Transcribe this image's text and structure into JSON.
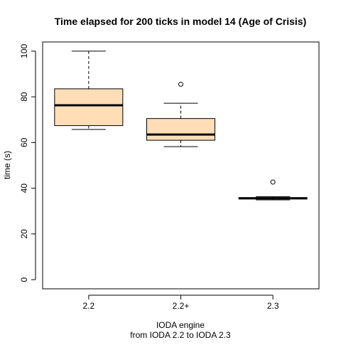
{
  "chart_data": {
    "type": "boxplot",
    "title": "Time elapsed for 200 ticks in model 14 (Age of Crisis)",
    "xlabel": "IODA engine",
    "xlabel_sub": "from IODA 2.2 to IODA 2.3",
    "ylabel": "time (s)",
    "categories": [
      "2.2",
      "2.2+",
      "2.3"
    ],
    "ylim": [
      -4,
      104
    ],
    "yticks": [
      0,
      20,
      40,
      60,
      80,
      100
    ],
    "grid": false,
    "legend": "none",
    "box_fill": "#FFDEB7",
    "boxes": [
      {
        "label": "2.2",
        "min": 65.7,
        "q1": 67.4,
        "median": 76.3,
        "q3": 83.5,
        "max": 100.0,
        "outliers": []
      },
      {
        "label": "2.2+",
        "min": 58.2,
        "q1": 61.0,
        "median": 63.5,
        "q3": 70.5,
        "max": 77.2,
        "outliers": [
          85.5
        ]
      },
      {
        "label": "2.3",
        "min": 34.9,
        "q1": 35.3,
        "median": 35.6,
        "q3": 35.9,
        "max": 36.3,
        "outliers": [
          42.7
        ]
      }
    ]
  }
}
